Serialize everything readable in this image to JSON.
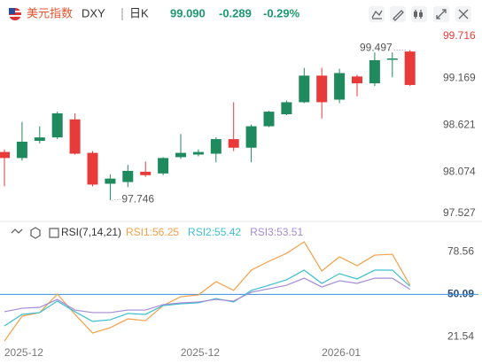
{
  "header": {
    "name": "美元指数",
    "symbol": "DXY",
    "period": "日K",
    "price": "99.090",
    "change": "-0.289",
    "change_pct": "-0.29%"
  },
  "chart_data": [
    {
      "type": "candlestick",
      "categories": [
        null,
        "2025-12",
        null,
        null,
        null,
        null,
        null,
        null,
        null,
        null,
        null,
        "2025-12",
        null,
        null,
        null,
        null,
        null,
        null,
        null,
        "2026-01",
        null,
        null,
        null,
        null
      ],
      "open": [
        98.309,
        98.239,
        98.439,
        98.479,
        98.689,
        98.299,
        97.939,
        97.959,
        98.079,
        98.059,
        98.249,
        98.279,
        98.289,
        98.459,
        98.359,
        98.609,
        98.749,
        98.889,
        99.199,
        98.919,
        99.189,
        99.109,
        99.389,
        99.48
      ],
      "high": [
        98.339,
        98.659,
        98.609,
        98.779,
        98.759,
        98.319,
        98.049,
        98.159,
        98.199,
        98.249,
        98.519,
        98.339,
        98.479,
        98.889,
        98.629,
        98.789,
        98.909,
        99.289,
        99.289,
        99.279,
        99.209,
        99.469,
        99.47,
        99.497
      ],
      "low": [
        97.909,
        98.209,
        98.409,
        98.459,
        98.279,
        97.909,
        97.746,
        97.899,
        98.019,
        98.039,
        98.229,
        98.259,
        98.189,
        98.319,
        98.189,
        98.599,
        98.739,
        98.879,
        98.699,
        98.879,
        98.959,
        99.079,
        99.179,
        99.08
      ],
      "close": [
        98.239,
        98.429,
        98.479,
        98.759,
        98.289,
        97.929,
        97.999,
        98.089,
        98.039,
        98.239,
        98.299,
        98.309,
        98.459,
        98.359,
        98.609,
        98.779,
        98.889,
        99.199,
        98.889,
        99.229,
        99.109,
        99.379,
        99.399,
        99.09
      ],
      "up_color": "#1f8a5e",
      "down_color": "#e93a3a",
      "ylim": [
        97.5,
        99.75
      ],
      "yticks": [
        97.527,
        98.074,
        98.621,
        99.169,
        99.716
      ],
      "annotations": [
        99.497,
        97.746
      ],
      "grid": false
    },
    {
      "type": "line",
      "title": "RSI(7,14,21)",
      "series": [
        {
          "name": "RSI1:56.25",
          "color": "#f4a048",
          "values": [
            18.9,
            35.5,
            37.9,
            50.3,
            36.7,
            24.2,
            27.8,
            33.7,
            32.5,
            42.6,
            48.5,
            49.7,
            58.6,
            52.7,
            66.3,
            72.2,
            77.5,
            85.2,
            65.7,
            75.2,
            69.2,
            76.3,
            76.9,
            56.25
          ]
        },
        {
          "name": "RSI2:55.42",
          "color": "#3cbfd1",
          "values": [
            29.0,
            36.7,
            37.9,
            45.6,
            38.5,
            32.0,
            33.1,
            37.3,
            36.7,
            42.6,
            43.8,
            44.4,
            47.3,
            45.0,
            52.7,
            56.2,
            59.8,
            66.3,
            57.4,
            63.9,
            60.4,
            66.3,
            66.3,
            55.42
          ]
        },
        {
          "name": "RSI3:53.51",
          "color": "#a58ad6",
          "values": [
            38.5,
            40.8,
            41.4,
            46.7,
            39.6,
            37.9,
            37.9,
            39.6,
            39.6,
            43.2,
            44.4,
            45.0,
            46.7,
            45.6,
            51.5,
            53.8,
            56.2,
            60.9,
            55.0,
            59.2,
            57.4,
            60.9,
            60.9,
            53.51
          ]
        }
      ],
      "ylim": [
        13,
        87
      ],
      "yticks": [
        21.54,
        50.09,
        78.56
      ],
      "reference_line": 50.09,
      "reference_color": "#3a8ee0"
    }
  ]
}
